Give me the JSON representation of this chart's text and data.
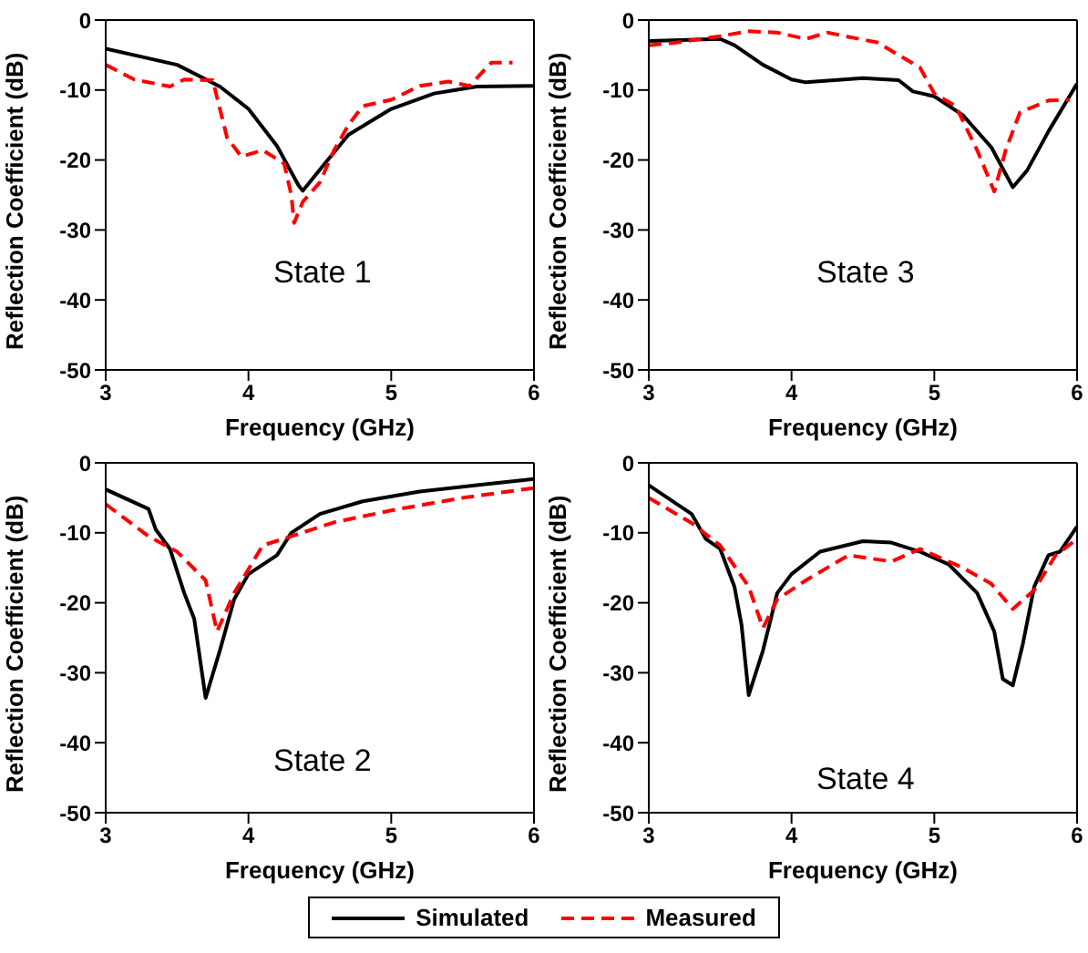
{
  "chart_data": [
    {
      "type": "line",
      "xlabel": "Frequency (GHz)",
      "ylabel": "Reflection Coefficient (dB)",
      "xlim": [
        3,
        6
      ],
      "ylim": [
        -50,
        0
      ],
      "xticks": [
        3,
        4,
        5,
        6
      ],
      "yticks": [
        0,
        -10,
        -20,
        -30,
        -40,
        -50
      ],
      "annotations": [
        "State 1"
      ],
      "legend": "bottom",
      "marker": "none",
      "series": [
        {
          "name": "Simulated",
          "color": "#000000",
          "line_style": "solid",
          "x": [
            3.0,
            3.5,
            3.8,
            4.0,
            4.2,
            4.35,
            4.38,
            4.5,
            4.7,
            5.0,
            5.3,
            5.6,
            6.0
          ],
          "values": [
            -4.1,
            -6.4,
            -9.5,
            -12.7,
            -18,
            -23.6,
            -24.4,
            -21.4,
            -16.4,
            -12.7,
            -10.5,
            -9.5,
            -9.4
          ]
        },
        {
          "name": "Measured",
          "color": "#ff0000",
          "line_style": "dashed",
          "x": [
            3.0,
            3.2,
            3.45,
            3.55,
            3.75,
            3.85,
            3.95,
            4.1,
            4.25,
            4.3,
            4.32,
            4.38,
            4.5,
            4.6,
            4.7,
            4.8,
            5.0,
            5.2,
            5.4,
            5.55,
            5.7,
            5.85
          ],
          "values": [
            -6.4,
            -8.5,
            -9.5,
            -8.5,
            -8.6,
            -16.8,
            -19.5,
            -18.6,
            -20.5,
            -25,
            -29,
            -26,
            -23.2,
            -18.6,
            -15,
            -12.3,
            -11.4,
            -9.4,
            -8.8,
            -9.4,
            -6.1,
            -6.1
          ]
        }
      ]
    },
    {
      "type": "line",
      "xlabel": "Frequency (GHz)",
      "ylabel": "Reflection Coefficient (dB)",
      "xlim": [
        3,
        6
      ],
      "ylim": [
        -50,
        0
      ],
      "xticks": [
        3,
        4,
        5,
        6
      ],
      "yticks": [
        0,
        -10,
        -20,
        -30,
        -40,
        -50
      ],
      "annotations": [
        "State 3"
      ],
      "marker": "none",
      "series": [
        {
          "color": "#000000",
          "line_style": "solid",
          "x": [
            3.0,
            3.5,
            3.6,
            3.8,
            4.0,
            4.1,
            4.5,
            4.75,
            4.85,
            5.0,
            5.2,
            5.4,
            5.55,
            5.65,
            5.8,
            6.0
          ],
          "values": [
            -3,
            -2.7,
            -3.6,
            -6.4,
            -8.5,
            -8.9,
            -8.3,
            -8.6,
            -10.2,
            -10.9,
            -13.6,
            -18.2,
            -23.9,
            -21.5,
            -15.9,
            -9.1
          ]
        },
        {
          "color": "#ff0000",
          "line_style": "dashed",
          "x": [
            3.0,
            3.2,
            3.5,
            3.7,
            3.9,
            4.1,
            4.25,
            4.6,
            4.9,
            5.0,
            5.15,
            5.3,
            5.42,
            5.5,
            5.6,
            5.8,
            5.95
          ],
          "values": [
            -3.6,
            -3.2,
            -2.3,
            -1.6,
            -1.8,
            -2.7,
            -1.8,
            -3.2,
            -6.8,
            -10.5,
            -12.3,
            -18.6,
            -24.5,
            -18.6,
            -13.2,
            -11.5,
            -11.4
          ]
        }
      ]
    },
    {
      "type": "line",
      "xlabel": "Frequency (GHz)",
      "ylabel": "Reflection Coefficient (dB)",
      "xlim": [
        3,
        6
      ],
      "ylim": [
        -50,
        0
      ],
      "xticks": [
        3,
        4,
        5,
        6
      ],
      "yticks": [
        0,
        -10,
        -20,
        -30,
        -40,
        -50
      ],
      "annotations": [
        "State 2"
      ],
      "marker": "none",
      "series": [
        {
          "color": "#000000",
          "line_style": "solid",
          "x": [
            3.0,
            3.3,
            3.35,
            3.45,
            3.55,
            3.62,
            3.7,
            3.8,
            3.9,
            4.0,
            4.2,
            4.3,
            4.5,
            4.8,
            5.2,
            5.6,
            6.0
          ],
          "values": [
            -3.8,
            -6.6,
            -9.5,
            -12.3,
            -18.6,
            -22.3,
            -33.6,
            -26.8,
            -19.5,
            -15.9,
            -13.2,
            -10,
            -7.3,
            -5.5,
            -4.1,
            -3.2,
            -2.3
          ]
        },
        {
          "color": "#ff0000",
          "line_style": "dashed",
          "x": [
            3.0,
            3.3,
            3.5,
            3.7,
            3.78,
            3.9,
            4.1,
            4.3,
            4.6,
            5.0,
            5.5,
            6.0
          ],
          "values": [
            -5.9,
            -10.5,
            -12.7,
            -16.8,
            -24.1,
            -18.6,
            -11.8,
            -10.5,
            -8.5,
            -6.8,
            -5,
            -3.6
          ]
        }
      ]
    },
    {
      "type": "line",
      "xlabel": "Frequency (GHz)",
      "ylabel": "Reflection Coefficient (dB)",
      "xlim": [
        3,
        6
      ],
      "ylim": [
        -50,
        0
      ],
      "xticks": [
        3,
        4,
        5,
        6
      ],
      "yticks": [
        0,
        -10,
        -20,
        -30,
        -40,
        -50
      ],
      "annotations": [
        "State 4"
      ],
      "marker": "none",
      "series": [
        {
          "color": "#000000",
          "line_style": "solid",
          "x": [
            3.0,
            3.3,
            3.4,
            3.5,
            3.6,
            3.65,
            3.7,
            3.8,
            3.9,
            4.0,
            4.2,
            4.5,
            4.7,
            4.9,
            5.1,
            5.3,
            5.42,
            5.48,
            5.55,
            5.62,
            5.7,
            5.8,
            5.88,
            6.0
          ],
          "values": [
            -3.2,
            -7.3,
            -10.9,
            -12.3,
            -17.7,
            -23.2,
            -33.2,
            -26.8,
            -18.6,
            -15.9,
            -12.7,
            -11.2,
            -11.4,
            -12.7,
            -14.5,
            -18.6,
            -24.1,
            -30.9,
            -31.8,
            -25.9,
            -17.7,
            -13.2,
            -12.7,
            -9.1
          ]
        },
        {
          "color": "#ff0000",
          "line_style": "dashed",
          "x": [
            3.0,
            3.3,
            3.5,
            3.7,
            3.8,
            3.9,
            4.1,
            4.4,
            4.7,
            4.9,
            5.2,
            5.4,
            5.55,
            5.7,
            5.85,
            6.0
          ],
          "values": [
            -5,
            -8.6,
            -11.8,
            -17.7,
            -23.6,
            -19.5,
            -16.8,
            -13.2,
            -14.1,
            -12.3,
            -15,
            -17.3,
            -20.9,
            -18.2,
            -13.2,
            -10.9
          ]
        }
      ]
    }
  ]
}
